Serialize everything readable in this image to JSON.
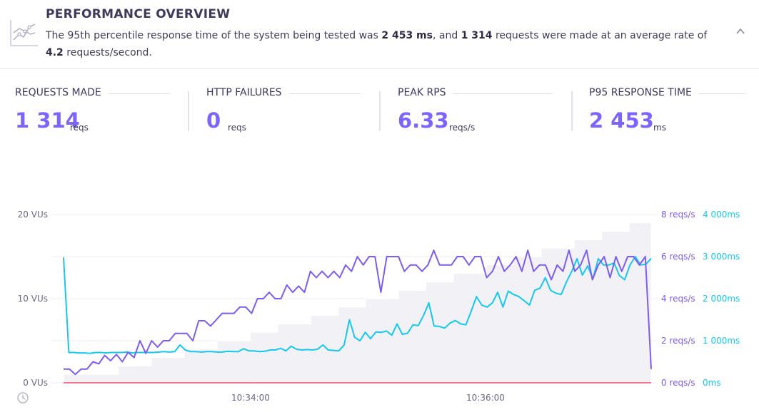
{
  "header": {
    "title": "PERFORMANCE OVERVIEW",
    "desc_prefix": "The 95th percentile response time of the system being tested was ",
    "p95_value": "2 453 ms",
    "desc_middle": ", and ",
    "requests_value": "1 314",
    "desc_middle2": " requests were made at an average rate of ",
    "avg_rate": "4.2",
    "desc_suffix": " requests/second.",
    "icon": "chart-line-icon",
    "collapse_icon": "chevron-up-icon"
  },
  "metrics": [
    {
      "label": "REQUESTS MADE",
      "value": "1 314",
      "unit": "reqs"
    },
    {
      "label": "HTTP FAILURES",
      "value": "0",
      "unit": "reqs"
    },
    {
      "label": "PEAK RPS",
      "value": "6.33",
      "unit": "reqs/s"
    },
    {
      "label": "P95 RESPONSE TIME",
      "value": "2 453",
      "unit": "ms"
    }
  ],
  "colors": {
    "accent": "#7d64ff",
    "rps": "#7d5cf0",
    "response": "#15c8ee",
    "failures": "#f0506e",
    "vus_area": "#f1f1f6"
  },
  "chart_data": {
    "type": "line",
    "x_tick_labels": [
      "10:34:00",
      "10:36:00"
    ],
    "left_axis": {
      "ticks": [
        "0 VUs",
        "10 VUs",
        "20 VUs"
      ],
      "ylim": [
        0,
        20
      ]
    },
    "rps_axis": {
      "ticks": [
        "0 reqs/s",
        "2 reqs/s",
        "4 reqs/s",
        "6 reqs/s",
        "8 reqs/s"
      ],
      "ylim": [
        0,
        8
      ]
    },
    "response_axis": {
      "ticks": [
        "0ms",
        "1 000ms",
        "2 000ms",
        "3 000ms",
        "4 000ms"
      ],
      "ylim": [
        0,
        4000
      ]
    },
    "series": [
      {
        "key": "vus",
        "values": [
          1,
          1,
          1,
          1,
          1,
          1,
          1,
          1,
          1,
          1,
          2,
          2,
          2,
          2,
          2,
          2,
          3,
          3,
          3,
          3,
          3,
          3,
          4,
          4,
          4,
          4,
          4,
          4,
          5,
          5,
          5,
          5,
          5,
          5,
          6,
          6,
          6,
          6,
          6,
          7,
          7,
          7,
          7,
          7,
          7,
          8,
          8,
          8,
          8,
          8,
          9,
          9,
          9,
          9,
          9,
          10,
          10,
          10,
          10,
          10,
          10,
          11,
          11,
          11,
          11,
          11,
          12,
          12,
          12,
          12,
          12,
          13,
          13,
          13,
          13,
          13,
          13,
          14,
          14,
          14,
          14,
          14,
          15,
          15,
          15,
          15,
          15,
          16,
          16,
          16,
          16,
          16,
          16,
          17,
          17,
          17,
          17,
          17,
          18,
          18,
          18,
          18,
          18,
          19,
          19,
          19,
          19,
          0
        ]
      },
      {
        "key": "rps",
        "values": [
          0.65,
          0.65,
          0.4,
          0.65,
          0.65,
          1.0,
          0.9,
          1.3,
          1.05,
          1.35,
          1.0,
          1.45,
          1.2,
          2.0,
          1.4,
          2.0,
          1.7,
          2.0,
          2.0,
          2.35,
          2.35,
          2.35,
          2.0,
          2.95,
          2.95,
          2.7,
          3.0,
          3.3,
          3.3,
          3.3,
          3.6,
          3.6,
          3.3,
          4.0,
          4.0,
          4.3,
          4.0,
          4.0,
          4.65,
          4.3,
          4.6,
          4.3,
          5.3,
          5.0,
          5.3,
          5.0,
          5.3,
          5.0,
          5.6,
          5.3,
          6.0,
          5.6,
          6.0,
          6.0,
          4.3,
          6.0,
          6.0,
          6.0,
          5.3,
          5.6,
          5.6,
          5.3,
          5.6,
          6.3,
          5.6,
          5.6,
          5.6,
          6.0,
          6.0,
          5.6,
          6.0,
          6.0,
          5.0,
          5.3,
          6.0,
          5.3,
          5.6,
          6.0,
          5.3,
          6.3,
          5.3,
          5.6,
          5.6,
          4.9,
          5.6,
          5.3,
          6.3,
          5.3,
          5.6,
          6.3,
          4.9,
          5.6,
          6.0,
          5.0,
          6.0,
          5.3,
          6.0,
          6.0,
          5.6,
          6.0,
          0.65
        ]
      },
      {
        "key": "response_time",
        "values": [
          2980,
          720,
          720,
          710,
          710,
          700,
          720,
          720,
          710,
          720,
          720,
          720,
          730,
          710,
          720,
          720,
          720,
          720,
          730,
          740,
          730,
          740,
          900,
          780,
          740,
          740,
          730,
          740,
          740,
          730,
          730,
          750,
          740,
          740,
          810,
          760,
          760,
          740,
          750,
          780,
          780,
          820,
          760,
          870,
          800,
          780,
          790,
          780,
          800,
          900,
          780,
          770,
          760,
          900,
          1500,
          1080,
          1000,
          1200,
          1050,
          1210,
          1200,
          1230,
          1130,
          1400,
          1150,
          1180,
          1380,
          1360,
          1600,
          1900,
          1350,
          1340,
          1300,
          1420,
          1480,
          1400,
          1380,
          1700,
          2050,
          1850,
          1800,
          1900,
          2150,
          1800,
          2180,
          2100,
          2050,
          1950,
          1850,
          2200,
          2250,
          2500,
          2200,
          2130,
          2100,
          2400,
          2650,
          2950,
          2560,
          2780,
          2470,
          2950,
          2800,
          2800,
          2850,
          2550,
          2450,
          2800,
          3000,
          2800,
          2820,
          2960
        ]
      }
    ],
    "failures": 0
  }
}
